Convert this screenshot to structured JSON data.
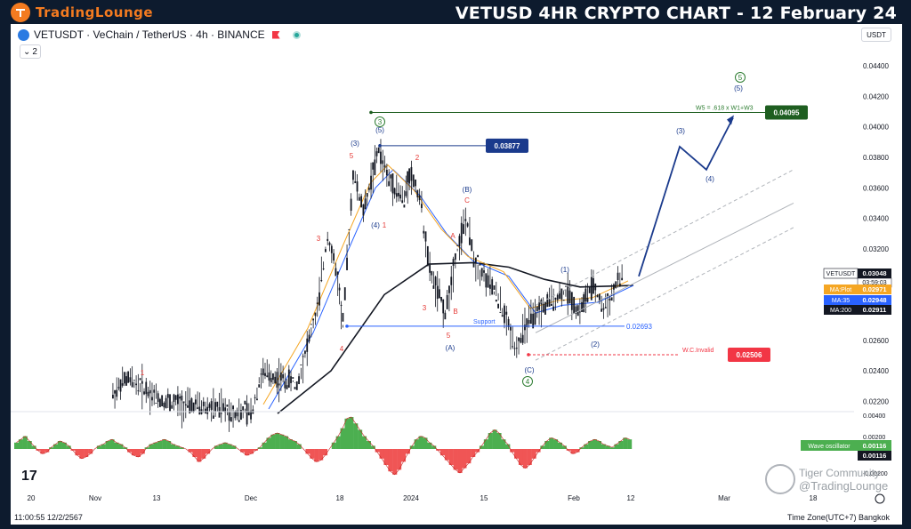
{
  "header": {
    "logo_prefix": "Trading",
    "logo_suffix": "Lounge",
    "title": "VETUSD 4HR CRYPTO CHART - 12 February 24"
  },
  "toolbar": {
    "symbol_text": "VETUSDT · VeChain / TetherUS · 4h · BINANCE",
    "collapse_count": "2",
    "currency": "USDT"
  },
  "chart_data": {
    "type": "line",
    "symbol": "VETUSDT",
    "x_ticks": [
      "20",
      "Nov",
      "13",
      "Dec",
      "18",
      "2024",
      "15",
      "Feb",
      "12",
      "Mar",
      "18"
    ],
    "y_ticks": [
      "0.04400",
      "0.04200",
      "0.04000",
      "0.03800",
      "0.03600",
      "0.03400",
      "0.03200",
      "0.03000",
      "0.02800",
      "0.02600",
      "0.02400",
      "0.02200"
    ],
    "ylim": [
      0.0215,
      0.045
    ],
    "price_path": [
      {
        "x": "Nov 5",
        "y": 0.0225
      },
      {
        "x": "Nov 8",
        "y": 0.0235
      },
      {
        "x": "Nov 15",
        "y": 0.022
      },
      {
        "x": "Dec 1",
        "y": 0.0212
      },
      {
        "x": "Dec 3",
        "y": 0.0238
      },
      {
        "x": "Dec 10",
        "y": 0.0232
      },
      {
        "x": "Dec 14",
        "y": 0.028
      },
      {
        "x": "Dec 16",
        "y": 0.033
      },
      {
        "x": "Dec 18",
        "y": 0.03
      },
      {
        "x": "Dec 19",
        "y": 0.027
      },
      {
        "x": "Dec 21",
        "y": 0.037
      },
      {
        "x": "Dec 23",
        "y": 0.0345
      },
      {
        "x": "Dec 26",
        "y": 0.0385
      },
      {
        "x": "Dec 28",
        "y": 0.0365
      },
      {
        "x": "Dec 31",
        "y": 0.0352
      },
      {
        "x": "Jan 1",
        "y": 0.037
      },
      {
        "x": "Jan 3",
        "y": 0.0355
      },
      {
        "x": "Jan 5",
        "y": 0.0305
      },
      {
        "x": "Jan 8",
        "y": 0.0278
      },
      {
        "x": "Jan 10",
        "y": 0.0315
      },
      {
        "x": "Jan 12",
        "y": 0.034
      },
      {
        "x": "Jan 14",
        "y": 0.031
      },
      {
        "x": "Jan 18",
        "y": 0.029
      },
      {
        "x": "Jan 22",
        "y": 0.0255
      },
      {
        "x": "Jan 24",
        "y": 0.027
      },
      {
        "x": "Jan 28",
        "y": 0.0285
      },
      {
        "x": "Feb 1",
        "y": 0.0292
      },
      {
        "x": "Feb 3",
        "y": 0.0279
      },
      {
        "x": "Feb 6",
        "y": 0.0296
      },
      {
        "x": "Feb 8",
        "y": 0.028
      },
      {
        "x": "Feb 12",
        "y": 0.0305
      }
    ],
    "projection_path": [
      {
        "x": "Feb 12",
        "y": 0.0302
      },
      {
        "x": "Feb 26",
        "y": 0.0387
      },
      {
        "x": "Mar 1",
        "y": 0.0372
      },
      {
        "x": "Mar 5",
        "y": 0.0406
      }
    ],
    "levels": [
      {
        "label": "0.04095",
        "value": 0.04095,
        "note": "W5 = .618 x W1+W3",
        "color": "#1e5e20"
      },
      {
        "label": "0.03877",
        "value": 0.03877,
        "color": "#1a3a8c"
      },
      {
        "label": "0.02693",
        "value": 0.02693,
        "note": "Support",
        "color": "#2962ff"
      },
      {
        "label": "0.02506",
        "value": 0.02506,
        "note": "W.C.Invalid",
        "color": "#f23645"
      }
    ],
    "right_labels": [
      {
        "name": "VETUSDT",
        "value": "0.03048",
        "sub": "03:59:03",
        "color": "#131722"
      },
      {
        "name": "MA:Plot",
        "value": "0.02971",
        "color": "#f5a623"
      },
      {
        "name": "MA:35",
        "value": "0.02948",
        "color": "#2962ff"
      },
      {
        "name": "MA:200",
        "value": "0.02911",
        "color": "#131722"
      }
    ],
    "wave_labels": [
      {
        "t": "1",
        "color": "#e53935"
      },
      {
        "t": "3",
        "color": "#e53935"
      },
      {
        "t": "4",
        "color": "#e53935"
      },
      {
        "t": "5",
        "color": "#e53935"
      },
      {
        "t": "(3)",
        "color": "#1a3a8c"
      },
      {
        "t": "(5)",
        "color": "#1a3a8c"
      },
      {
        "t": "3",
        "color": "#2e7d32",
        "circled": true
      },
      {
        "t": "(4)",
        "color": "#1a3a8c"
      },
      {
        "t": "1",
        "color": "#e53935"
      },
      {
        "t": "2",
        "color": "#e53935"
      },
      {
        "t": "3",
        "color": "#e53935"
      },
      {
        "t": "A",
        "color": "#e53935"
      },
      {
        "t": "B",
        "color": "#e53935"
      },
      {
        "t": "5",
        "color": "#e53935"
      },
      {
        "t": "(A)",
        "color": "#1a3a8c"
      },
      {
        "t": "(B)",
        "color": "#1a3a8c"
      },
      {
        "t": "C",
        "color": "#e53935"
      },
      {
        "t": "(C)",
        "color": "#1a3a8c"
      },
      {
        "t": "4",
        "color": "#2e7d32",
        "circled": true
      },
      {
        "t": "(1)",
        "color": "#1a3a8c"
      },
      {
        "t": "(2)",
        "color": "#1a3a8c"
      },
      {
        "t": "(3)",
        "color": "#1a3a8c"
      },
      {
        "t": "(4)",
        "color": "#1a3a8c"
      },
      {
        "t": "(5)",
        "color": "#1a3a8c"
      },
      {
        "t": "5",
        "color": "#2e7d32",
        "circled": true
      }
    ],
    "oscillator": {
      "name": "Wave oscillator",
      "value": "0.00116",
      "value2": "0.00116",
      "y_ticks": [
        "0.00400",
        "0.00200",
        "-0.00200"
      ],
      "bars": [
        0.4,
        0.6,
        0.8,
        0.5,
        0.2,
        -0.1,
        -0.3,
        -0.2,
        0.1,
        0.3,
        0.5,
        0.4,
        0.2,
        -0.1,
        -0.4,
        -0.6,
        -0.5,
        -0.3,
        0.0,
        0.2,
        0.3,
        0.5,
        0.6,
        0.4,
        0.3,
        0.1,
        -0.2,
        -0.4,
        -0.5,
        -0.3,
        0.1,
        0.3,
        0.4,
        0.5,
        0.6,
        0.5,
        0.3,
        0.2,
        0.1,
        0.0,
        -0.2,
        -0.5,
        -0.8,
        -0.6,
        -0.3,
        0.0,
        0.2,
        0.3,
        0.4,
        0.3,
        0.2,
        0.0,
        -0.2,
        -0.4,
        -0.3,
        -0.1,
        0.1,
        0.4,
        0.7,
        0.9,
        1.0,
        0.9,
        0.8,
        0.6,
        0.5,
        0.3,
        0.0,
        -0.3,
        -0.6,
        -0.8,
        -0.7,
        -0.4,
        0.0,
        0.4,
        0.8,
        1.3,
        1.9,
        2.0,
        1.6,
        1.2,
        0.8,
        0.5,
        0.2,
        -0.2,
        -0.6,
        -1.0,
        -1.4,
        -1.6,
        -1.3,
        -0.8,
        -0.3,
        0.2,
        0.6,
        0.8,
        0.7,
        0.4,
        0.2,
        -0.1,
        -0.4,
        -0.7,
        -1.0,
        -1.3,
        -1.5,
        -1.2,
        -0.9,
        -0.5,
        -0.2,
        0.2,
        0.6,
        1.0,
        1.2,
        1.0,
        0.6,
        0.3,
        -0.2,
        -0.6,
        -1.0,
        -1.2,
        -1.0,
        -0.6,
        -0.2,
        0.2,
        0.5,
        0.7,
        0.6,
        0.4,
        0.2,
        -0.1,
        -0.3,
        -0.2,
        0.1,
        0.3,
        0.5,
        0.6,
        0.5,
        0.3,
        0.2,
        0.1,
        0.3,
        0.5,
        0.7,
        0.6
      ]
    }
  },
  "footer": {
    "time": "11:00:55 12/2/2567",
    "timezone": "Time Zone(UTC+7) Bangkok",
    "tv_logo": "17",
    "watermark_line1": "Tiger Community",
    "watermark_line2": "@TradingLounge"
  }
}
